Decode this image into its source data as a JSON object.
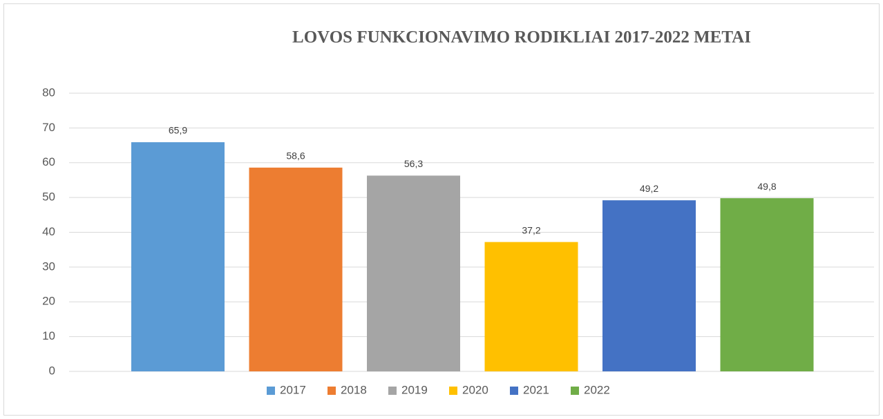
{
  "chart_data": {
    "type": "bar",
    "title": "LOVOS FUNKCIONAVIMO RODIKLIAI 2017-2022 METAI",
    "categories": [
      null
    ],
    "series": [
      {
        "name": "2017",
        "color": "#5b9bd5",
        "values": [
          65.9
        ],
        "value_labels": [
          "65,9"
        ]
      },
      {
        "name": "2018",
        "color": "#ed7d31",
        "values": [
          58.6
        ],
        "value_labels": [
          "58,6"
        ]
      },
      {
        "name": "2019",
        "color": "#a5a5a5",
        "values": [
          56.3
        ],
        "value_labels": [
          "56,3"
        ]
      },
      {
        "name": "2020",
        "color": "#ffc000",
        "values": [
          37.2
        ],
        "value_labels": [
          "37,2"
        ]
      },
      {
        "name": "2021",
        "color": "#4472c4",
        "values": [
          49.2
        ],
        "value_labels": [
          "49,2"
        ]
      },
      {
        "name": "2022",
        "color": "#70ad47",
        "values": [
          49.8
        ],
        "value_labels": [
          "49,8"
        ]
      }
    ],
    "ylim": [
      0,
      80
    ],
    "yticks": [
      0,
      10,
      20,
      30,
      40,
      50,
      60,
      70,
      80
    ],
    "grid": true,
    "legend": "bottom"
  }
}
